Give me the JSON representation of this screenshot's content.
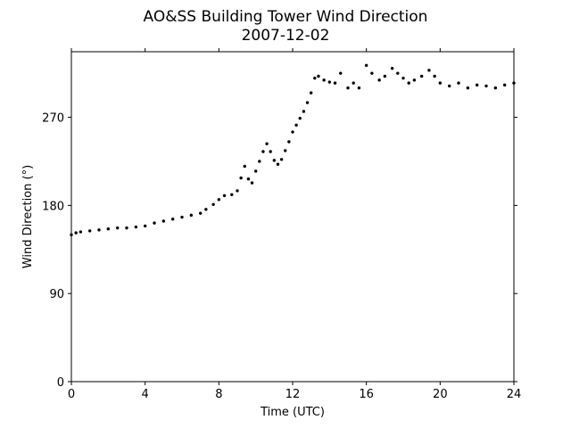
{
  "chart_data": {
    "type": "scatter",
    "title": "AO&SS Building Tower Wind Direction",
    "subtitle": "2007-12-02",
    "xlabel": "Time (UTC)",
    "ylabel": "Wind Direction (°)",
    "xlim": [
      0,
      24
    ],
    "ylim": [
      0,
      337
    ],
    "xticks": [
      0,
      4,
      8,
      12,
      16,
      20,
      24
    ],
    "yticks": [
      0,
      90,
      180,
      270
    ],
    "grid": false,
    "marker_color": "#000000",
    "series": [
      {
        "x": [
          0,
          0.25,
          0.5,
          1,
          1.5,
          2,
          2.5,
          3,
          3.5,
          4,
          4.5,
          5,
          5.5,
          6,
          6.5,
          7,
          7.3,
          7.7,
          8,
          8.3,
          8.7,
          9,
          9.2,
          9.4,
          9.6,
          9.8,
          10,
          10.2,
          10.4,
          10.6,
          10.8,
          11,
          11.2,
          11.4,
          11.6,
          11.8,
          12,
          12.2,
          12.4,
          12.6,
          12.8,
          13,
          13.2,
          13.4,
          13.7,
          14,
          14.3,
          14.6,
          15,
          15.3,
          15.6,
          16,
          16.3,
          16.7,
          17,
          17.4,
          17.7,
          18,
          18.3,
          18.6,
          19,
          19.4,
          19.7,
          20,
          20.5,
          21,
          21.5,
          22,
          22.5,
          23,
          23.5,
          24
        ],
        "y": [
          150,
          152,
          153,
          154,
          155,
          156,
          157,
          157,
          158,
          159,
          162,
          164,
          166,
          168,
          170,
          172,
          176,
          181,
          186,
          190,
          191,
          195,
          208,
          220,
          207,
          203,
          215,
          225,
          235,
          243,
          235,
          226,
          222,
          227,
          236,
          245,
          255,
          262,
          269,
          276,
          285,
          295,
          310,
          312,
          308,
          306,
          305,
          315,
          300,
          305,
          300,
          323,
          315,
          308,
          312,
          320,
          315,
          310,
          305,
          308,
          312,
          318,
          312,
          305,
          302,
          305,
          300,
          303,
          302,
          300,
          303,
          305
        ]
      }
    ]
  }
}
